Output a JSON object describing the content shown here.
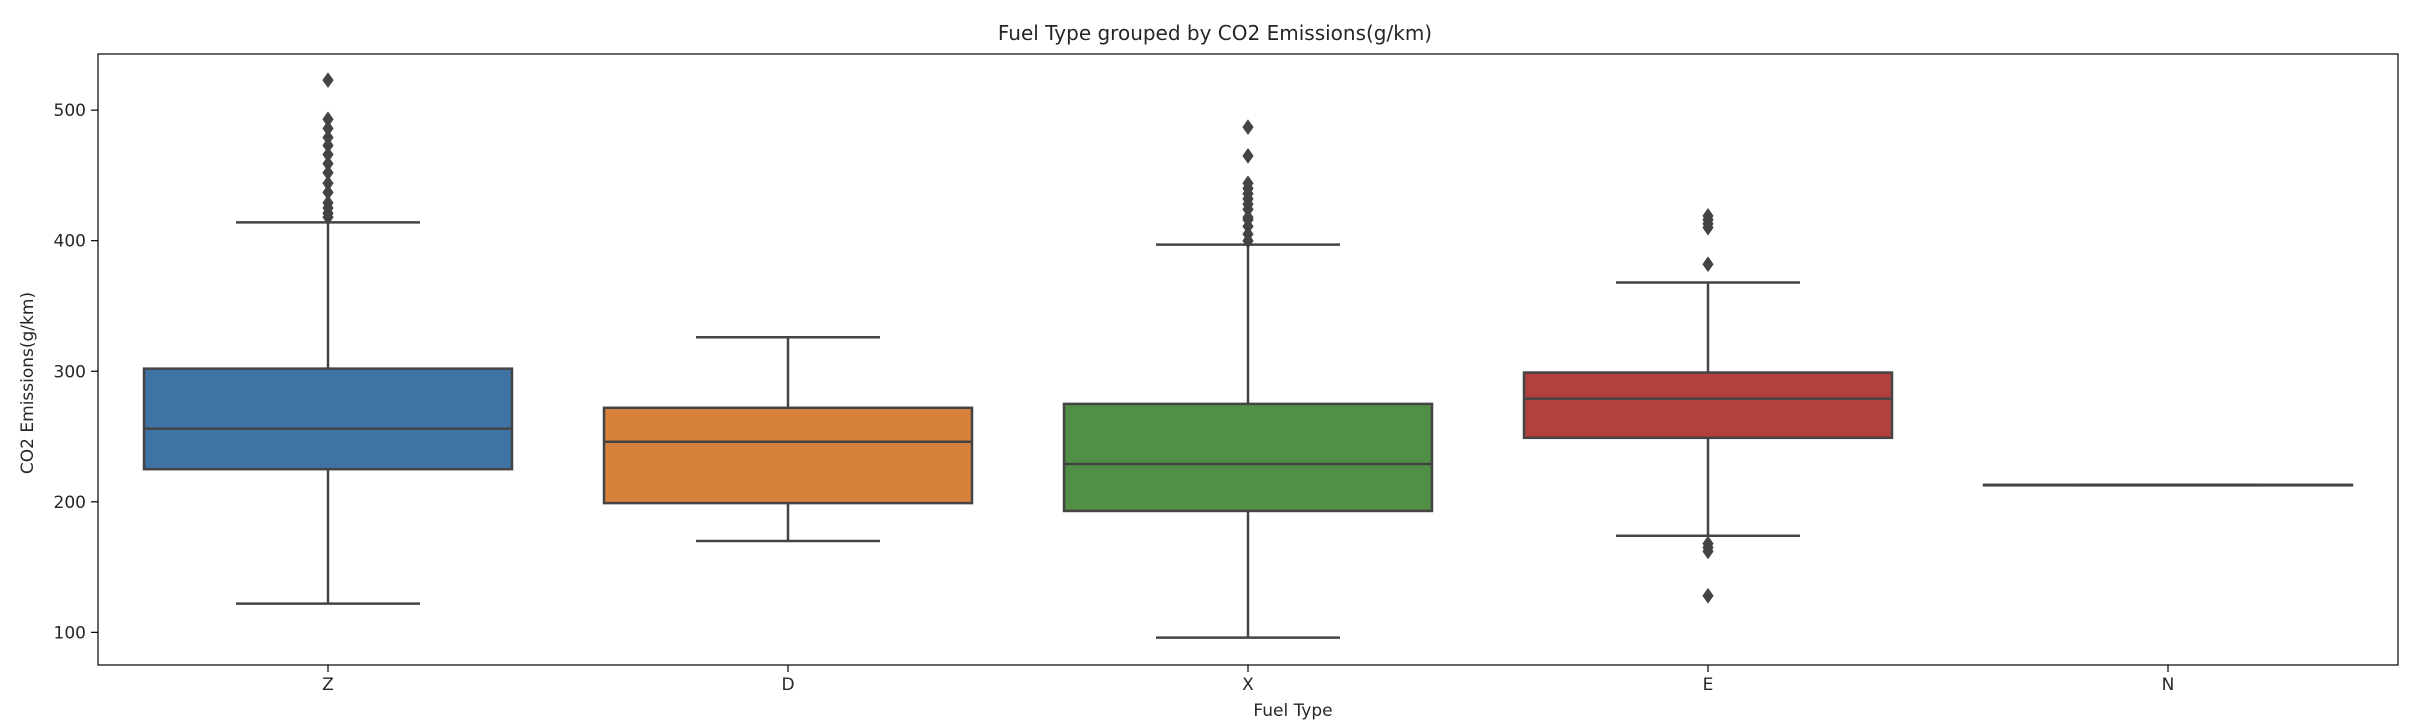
{
  "chart_data": {
    "type": "box",
    "title": "Fuel Type grouped by CO2 Emissions(g/km)",
    "xlabel": "Fuel Type",
    "ylabel": "CO2 Emissions(g/km)",
    "ylim": [
      75,
      543
    ],
    "yticks": [
      100,
      200,
      300,
      400,
      500
    ],
    "grid": false,
    "legend": "none",
    "categories": [
      "Z",
      "D",
      "X",
      "E",
      "N"
    ],
    "boxes": [
      {
        "category": "Z",
        "color": "#3f73a3",
        "whisker_low": 122,
        "q1": 225,
        "median": 256,
        "q3": 302,
        "whisker_high": 414,
        "outliers": [
          418,
          421,
          425,
          429,
          437,
          444,
          452,
          459,
          466,
          473,
          479,
          486,
          493,
          523
        ]
      },
      {
        "category": "D",
        "color": "#d6823d",
        "whisker_low": 170,
        "q1": 199,
        "median": 246,
        "q3": 272,
        "whisker_high": 326,
        "outliers": []
      },
      {
        "category": "X",
        "color": "#528f46",
        "whisker_low": 96,
        "q1": 193,
        "median": 229,
        "q3": 275,
        "whisker_high": 397,
        "outliers": [
          400,
          405,
          411,
          416,
          418,
          424,
          428,
          432,
          436,
          440,
          444,
          465,
          487
        ]
      },
      {
        "category": "E",
        "color": "#b3403d",
        "whisker_low": 174,
        "q1": 249,
        "median": 279,
        "q3": 299,
        "whisker_high": 368,
        "outliers": [
          128,
          162,
          165,
          168,
          382,
          410,
          413,
          416,
          419
        ]
      },
      {
        "category": "N",
        "color": "#7f5fa6",
        "whisker_low": 213,
        "q1": 213,
        "median": 213,
        "q3": 213,
        "whisker_high": 213,
        "outliers": []
      }
    ]
  }
}
